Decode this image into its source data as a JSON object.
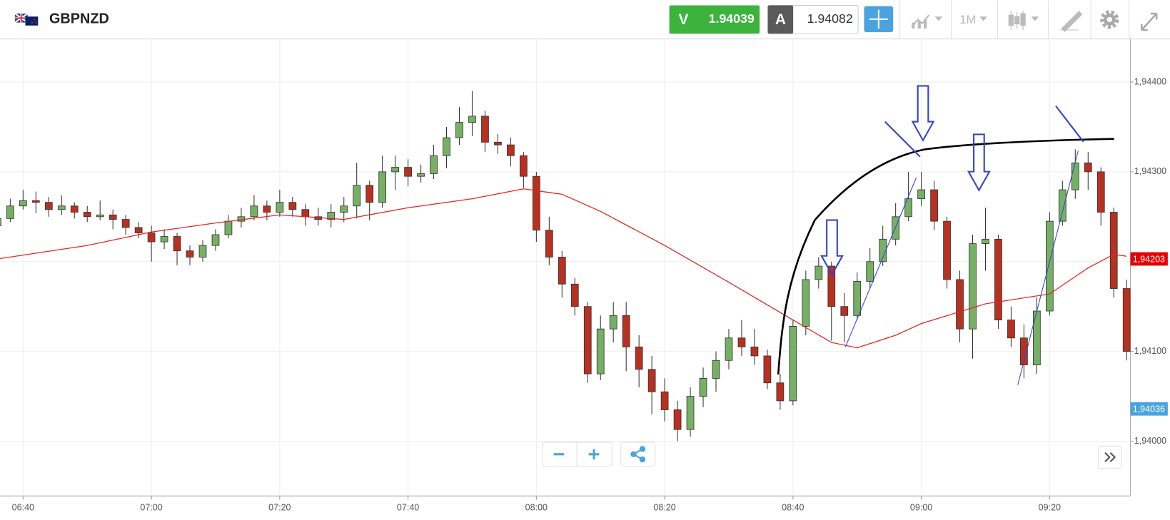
{
  "toolbar": {
    "symbol": "GBPNZD",
    "sell_label": "V",
    "sell_price": "1.94039",
    "buy_label": "A",
    "buy_price": "1.94082",
    "timeframe": "1M"
  },
  "chart_data": {
    "type": "candlestick",
    "x": [
      396,
      398,
      400,
      402,
      404,
      406,
      408,
      410,
      412,
      414,
      416,
      418,
      420,
      422,
      424,
      426,
      428,
      430,
      432,
      434,
      436,
      438,
      440,
      442,
      444,
      446,
      448,
      450,
      452,
      454,
      456,
      458,
      460,
      462,
      464,
      466,
      468,
      470,
      472,
      474,
      476,
      478,
      480,
      482,
      484,
      486,
      488,
      490,
      492,
      494,
      496,
      498,
      500,
      502,
      504,
      506,
      508,
      510,
      512,
      514,
      516,
      518,
      520,
      522,
      524,
      526,
      528,
      530,
      532,
      534,
      536,
      538,
      540,
      542,
      544,
      546,
      548,
      550,
      552,
      554,
      556,
      558,
      560,
      562,
      564,
      566,
      568,
      570,
      572
    ],
    "candles": [
      [
        1.9424,
        1.94256,
        1.94232,
        1.94248
      ],
      [
        1.94248,
        1.9427,
        1.94244,
        1.94262
      ],
      [
        1.94262,
        1.9428,
        1.94258,
        1.94268
      ],
      [
        1.94268,
        1.94278,
        1.94254,
        1.94266
      ],
      [
        1.94266,
        1.94272,
        1.9425,
        1.94258
      ],
      [
        1.94258,
        1.94274,
        1.94252,
        1.94262
      ],
      [
        1.94262,
        1.94266,
        1.94248,
        1.94255
      ],
      [
        1.94255,
        1.94262,
        1.94244,
        1.9425
      ],
      [
        1.9425,
        1.94268,
        1.94246,
        1.94252
      ],
      [
        1.94252,
        1.94258,
        1.94236,
        1.94247
      ],
      [
        1.94247,
        1.94252,
        1.9423,
        1.94238
      ],
      [
        1.94238,
        1.94244,
        1.94226,
        1.94232
      ],
      [
        1.94232,
        1.9424,
        1.942,
        1.94222
      ],
      [
        1.94222,
        1.94236,
        1.94214,
        1.94228
      ],
      [
        1.94228,
        1.94232,
        1.94196,
        1.94212
      ],
      [
        1.94212,
        1.94218,
        1.94196,
        1.94205
      ],
      [
        1.94205,
        1.94224,
        1.942,
        1.94218
      ],
      [
        1.94218,
        1.94236,
        1.94212,
        1.9423
      ],
      [
        1.9423,
        1.94252,
        1.94226,
        1.94245
      ],
      [
        1.94245,
        1.9426,
        1.94238,
        1.9425
      ],
      [
        1.9425,
        1.94274,
        1.94246,
        1.94262
      ],
      [
        1.94262,
        1.94268,
        1.94246,
        1.94255
      ],
      [
        1.94255,
        1.9428,
        1.9425,
        1.94266
      ],
      [
        1.94266,
        1.94272,
        1.9425,
        1.94258
      ],
      [
        1.94258,
        1.94264,
        1.9424,
        1.9425
      ],
      [
        1.9425,
        1.9426,
        1.9424,
        1.94247
      ],
      [
        1.94247,
        1.94264,
        1.94238,
        1.94255
      ],
      [
        1.94255,
        1.94272,
        1.94244,
        1.94262
      ],
      [
        1.94262,
        1.9431,
        1.94248,
        1.94285
      ],
      [
        1.94285,
        1.9429,
        1.94246,
        1.94266
      ],
      [
        1.94266,
        1.94318,
        1.9426,
        1.943
      ],
      [
        1.943,
        1.94318,
        1.9428,
        1.94305
      ],
      [
        1.94305,
        1.94314,
        1.94284,
        1.94295
      ],
      [
        1.94295,
        1.94308,
        1.94288,
        1.94298
      ],
      [
        1.94298,
        1.9433,
        1.94292,
        1.94318
      ],
      [
        1.94318,
        1.9435,
        1.94304,
        1.94338
      ],
      [
        1.94338,
        1.94372,
        1.9433,
        1.94355
      ],
      [
        1.94355,
        1.9439,
        1.9434,
        1.94362
      ],
      [
        1.94362,
        1.94368,
        1.94322,
        1.94333
      ],
      [
        1.94333,
        1.94342,
        1.9432,
        1.9433
      ],
      [
        1.9433,
        1.94338,
        1.94306,
        1.94318
      ],
      [
        1.94318,
        1.94322,
        1.94282,
        1.94295
      ],
      [
        1.94295,
        1.943,
        1.94222,
        1.94235
      ],
      [
        1.94235,
        1.9425,
        1.94196,
        1.94205
      ],
      [
        1.94205,
        1.94212,
        1.9416,
        1.94175
      ],
      [
        1.94175,
        1.94182,
        1.9414,
        1.9415
      ],
      [
        1.9415,
        1.94155,
        1.94065,
        1.94075
      ],
      [
        1.94075,
        1.9414,
        1.94068,
        1.94125
      ],
      [
        1.94125,
        1.94155,
        1.9411,
        1.9414
      ],
      [
        1.9414,
        1.94155,
        1.94078,
        1.94105
      ],
      [
        1.94105,
        1.94118,
        1.9406,
        1.9408
      ],
      [
        1.9408,
        1.94095,
        1.9403,
        1.94055
      ],
      [
        1.94055,
        1.9407,
        1.94022,
        1.94035
      ],
      [
        1.94035,
        1.94045,
        1.94,
        1.94013
      ],
      [
        1.94013,
        1.9406,
        1.94005,
        1.9405
      ],
      [
        1.9405,
        1.94082,
        1.94038,
        1.9407
      ],
      [
        1.9407,
        1.941,
        1.94055,
        1.9409
      ],
      [
        1.9409,
        1.94125,
        1.9408,
        1.94115
      ],
      [
        1.94115,
        1.94135,
        1.94095,
        1.94105
      ],
      [
        1.94105,
        1.94125,
        1.94085,
        1.94095
      ],
      [
        1.94095,
        1.94102,
        1.94058,
        1.94065
      ],
      [
        1.94065,
        1.94075,
        1.94035,
        1.94045
      ],
      [
        1.94045,
        1.94135,
        1.9404,
        1.94128
      ],
      [
        1.94128,
        1.9419,
        1.94118,
        1.9418
      ],
      [
        1.9418,
        1.94205,
        1.9417,
        1.94195
      ],
      [
        1.94195,
        1.942,
        1.94112,
        1.9415
      ],
      [
        1.9415,
        1.94165,
        1.9411,
        1.9414
      ],
      [
        1.9414,
        1.94188,
        1.94135,
        1.94178
      ],
      [
        1.94178,
        1.94215,
        1.9417,
        1.942
      ],
      [
        1.942,
        1.9424,
        1.94195,
        1.94225
      ],
      [
        1.94225,
        1.94265,
        1.94218,
        1.9425
      ],
      [
        1.9425,
        1.943,
        1.94245,
        1.9427
      ],
      [
        1.9427,
        1.943,
        1.94262,
        1.9428
      ],
      [
        1.9428,
        1.9429,
        1.94235,
        1.94245
      ],
      [
        1.94245,
        1.9425,
        1.9417,
        1.9418
      ],
      [
        1.9418,
        1.9419,
        1.9411,
        1.94125
      ],
      [
        1.94125,
        1.9423,
        1.94092,
        1.9422
      ],
      [
        1.9422,
        1.9426,
        1.9419,
        1.94225
      ],
      [
        1.94225,
        1.9423,
        1.94125,
        1.94135
      ],
      [
        1.94135,
        1.9415,
        1.94105,
        1.94115
      ],
      [
        1.94115,
        1.9413,
        1.9407,
        1.94085
      ],
      [
        1.94085,
        1.9416,
        1.94075,
        1.94145
      ],
      [
        1.94145,
        1.94255,
        1.9414,
        1.94245
      ],
      [
        1.94245,
        1.9429,
        1.9424,
        1.9428
      ],
      [
        1.9428,
        1.94325,
        1.9427,
        1.9431
      ],
      [
        1.9431,
        1.94322,
        1.9428,
        1.943
      ],
      [
        1.943,
        1.94305,
        1.9424,
        1.94255
      ],
      [
        1.94255,
        1.9426,
        1.9416,
        1.9417
      ],
      [
        1.9417,
        1.9418,
        1.9409,
        1.941
      ]
    ],
    "up_color": "#76b064",
    "down_color": "#b8301f",
    "series": [
      {
        "color": "#e8231f",
        "x": [
          396,
          410,
          420,
          430,
          440,
          450,
          460,
          470,
          478,
          484,
          490,
          500,
          510,
          520,
          526,
          530,
          536,
          540,
          550,
          560,
          566,
          570,
          572
        ],
        "values": [
          1.94203,
          1.94218,
          1.94233,
          1.94243,
          1.94252,
          1.94247,
          1.9426,
          1.9427,
          1.94281,
          1.94275,
          1.94256,
          1.94218,
          1.94177,
          1.94135,
          1.9411,
          1.94104,
          1.94118,
          1.94131,
          1.94153,
          1.94164,
          1.94193,
          1.94208,
          1.94206
        ]
      }
    ],
    "xlim": [
      396.4,
      572.6
    ],
    "xticks": [
      {
        "value": 400,
        "label": "06:40"
      },
      {
        "value": 420,
        "label": "07:00"
      },
      {
        "value": 440,
        "label": "07:20"
      },
      {
        "value": 460,
        "label": "07:40"
      },
      {
        "value": 480,
        "label": "08:00"
      },
      {
        "value": 500,
        "label": "08:20"
      },
      {
        "value": 520,
        "label": "08:40"
      },
      {
        "value": 540,
        "label": "09:00"
      },
      {
        "value": 560,
        "label": "09:20"
      }
    ],
    "ylim": [
      1.93939,
      1.94448
    ],
    "yticks": [
      {
        "value": 1.944,
        "label": "1,94400"
      },
      {
        "value": 1.943,
        "label": "1,94300"
      },
      {
        "value": 1.942,
        "label": "1,94200"
      },
      {
        "value": 1.941,
        "label": "1,94100"
      },
      {
        "value": 1.94,
        "label": "1,94000"
      }
    ],
    "grid": true,
    "price_tags": [
      {
        "value": 1.94203,
        "label": "1,94203",
        "color": "#e60000"
      },
      {
        "value": 1.94036,
        "label": "1,94036",
        "color": "#4aa3df"
      }
    ]
  }
}
